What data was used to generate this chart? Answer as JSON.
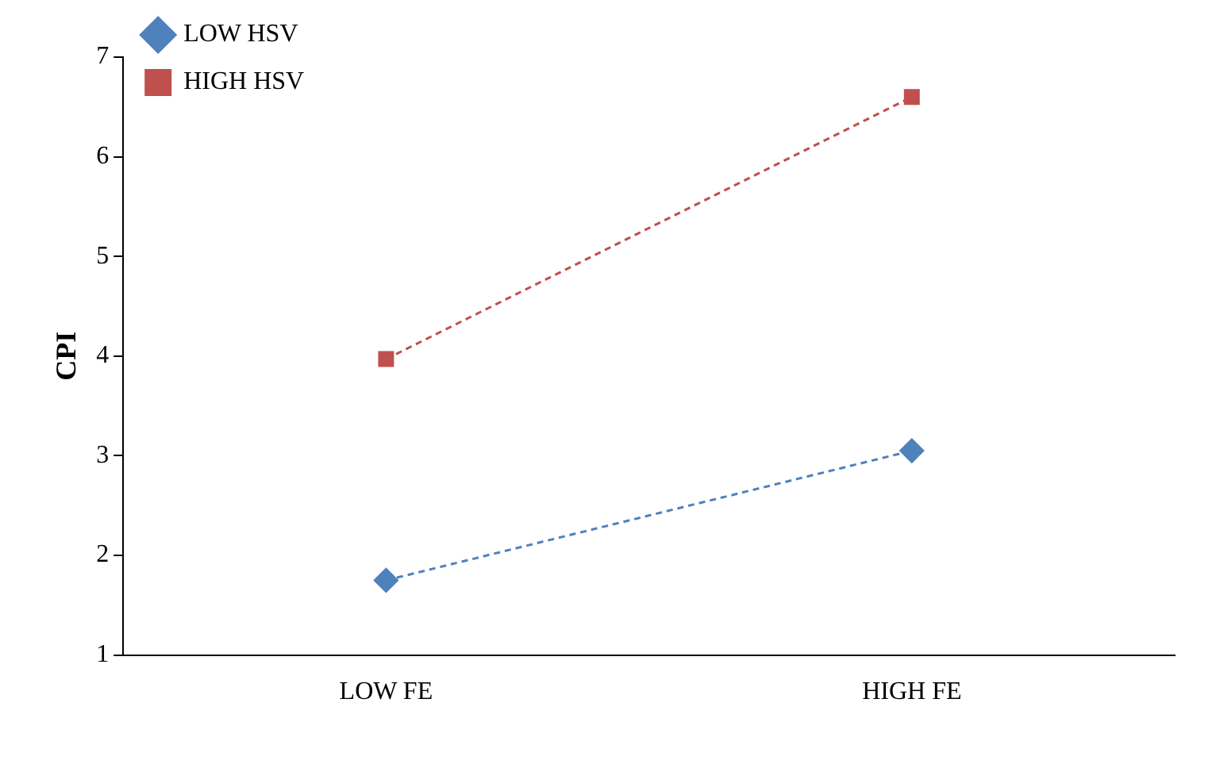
{
  "chart_data": {
    "type": "line",
    "ylabel": "CPI",
    "categories": [
      "LOW FE",
      "HIGH FE"
    ],
    "series": [
      {
        "name": "LOW HSV",
        "color": "#4f81bd",
        "values": [
          1.75,
          3.05
        ],
        "marker": "diamond"
      },
      {
        "name": "HIGH HSV",
        "color": "#c0504d",
        "values": [
          3.97,
          6.6
        ],
        "marker": "square"
      }
    ],
    "ylim": [
      1,
      7
    ],
    "yticks": [
      1,
      2,
      3,
      4,
      5,
      6,
      7
    ],
    "grid": false,
    "legend": "top left",
    "line_style": "dashed"
  }
}
